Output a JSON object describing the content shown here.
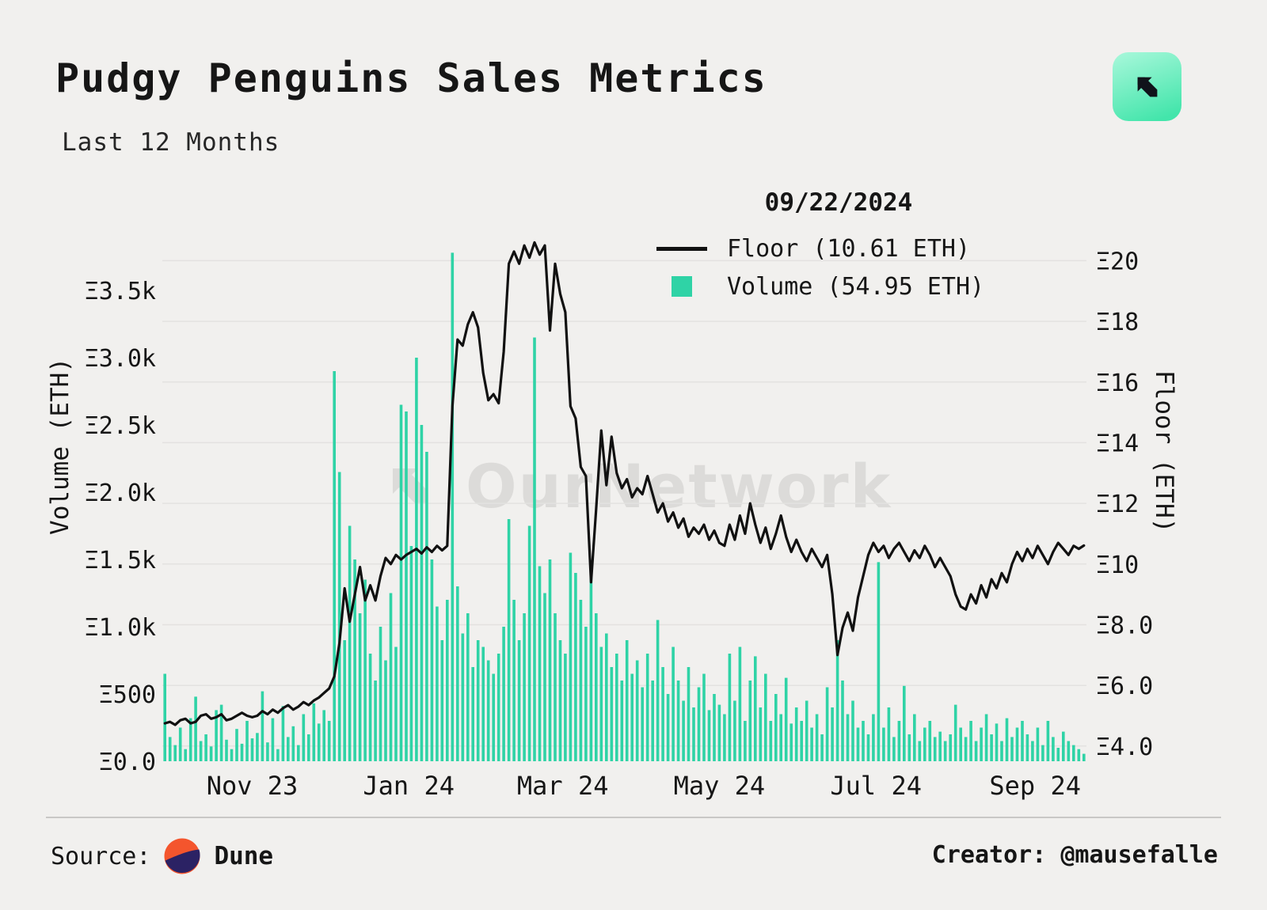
{
  "page": {
    "title": "Pudgy Penguins Sales Metrics",
    "subtitle": "Last 12 Months",
    "watermark": "OurNetwork"
  },
  "footer": {
    "source_label": "Source:",
    "source_name": "Dune",
    "creator": "Creator: @mausefalle"
  },
  "colors": {
    "background": "#f1f0ee",
    "bar": "#2fd3a6",
    "line": "#111111",
    "grid": "#e3e2e0",
    "text": "#161616",
    "watermark": "#dcdbd9",
    "logo_green_light": "#a9f8db",
    "logo_green_dark": "#43e5ab",
    "dune_orange": "#f4552d",
    "dune_navy": "#2b2264"
  },
  "chart_data": {
    "type": "bar",
    "subtype": "dual-axis bar + line, daily time series",
    "title": "Pudgy Penguins Sales Metrics",
    "legend": {
      "date": "09/22/2024",
      "floor": "Floor (10.61 ETH)",
      "volume": "Volume (54.95 ETH)"
    },
    "x_ticks": [
      {
        "label": "Nov 23",
        "pos": 17.5
      },
      {
        "label": "Jan 24",
        "pos": 48
      },
      {
        "label": "Mar 24",
        "pos": 78
      },
      {
        "label": "May 24",
        "pos": 108.5
      },
      {
        "label": "Jul 24",
        "pos": 139
      },
      {
        "label": "Sep 24",
        "pos": 170
      }
    ],
    "volume_axis": {
      "title": "Volume (ETH)",
      "min": 0,
      "max": 3800,
      "ticks": [
        {
          "value": 0,
          "label": "Ξ0.0"
        },
        {
          "value": 500,
          "label": "Ξ500"
        },
        {
          "value": 1000,
          "label": "Ξ1.0k"
        },
        {
          "value": 1500,
          "label": "Ξ1.5k"
        },
        {
          "value": 2000,
          "label": "Ξ2.0k"
        },
        {
          "value": 2500,
          "label": "Ξ2.5k"
        },
        {
          "value": 3000,
          "label": "Ξ3.0k"
        },
        {
          "value": 3500,
          "label": "Ξ3.5k"
        }
      ]
    },
    "floor_axis": {
      "title": "Floor (ETH)",
      "min": 3.5,
      "max": 20.35,
      "ticks": [
        {
          "value": 4,
          "label": "Ξ4.0"
        },
        {
          "value": 6,
          "label": "Ξ6.0"
        },
        {
          "value": 8,
          "label": "Ξ8.0"
        },
        {
          "value": 10,
          "label": "Ξ10"
        },
        {
          "value": 12,
          "label": "Ξ12"
        },
        {
          "value": 14,
          "label": "Ξ14"
        },
        {
          "value": 16,
          "label": "Ξ16"
        },
        {
          "value": 18,
          "label": "Ξ18"
        },
        {
          "value": 20,
          "label": "Ξ20"
        }
      ]
    },
    "series": [
      {
        "name": "Volume (ETH)",
        "type": "bar",
        "axis": "left",
        "latest_value": 54.95,
        "values": [
          650,
          180,
          120,
          250,
          90,
          320,
          480,
          150,
          200,
          110,
          380,
          420,
          160,
          90,
          240,
          130,
          300,
          170,
          210,
          520,
          140,
          320,
          90,
          410,
          180,
          260,
          120,
          350,
          200,
          430,
          280,
          380,
          300,
          2900,
          2150,
          900,
          1750,
          1500,
          1100,
          1350,
          800,
          600,
          1000,
          750,
          1250,
          850,
          2650,
          2600,
          1600,
          3000,
          2500,
          2300,
          1500,
          1150,
          900,
          1200,
          3780,
          1300,
          950,
          1100,
          700,
          900,
          850,
          750,
          650,
          800,
          1000,
          1800,
          1200,
          900,
          1100,
          1750,
          3150,
          1450,
          1250,
          1500,
          1100,
          900,
          800,
          1550,
          1400,
          1200,
          1000,
          1450,
          1100,
          850,
          950,
          700,
          800,
          600,
          900,
          650,
          750,
          550,
          800,
          600,
          1050,
          700,
          500,
          850,
          600,
          450,
          700,
          400,
          550,
          650,
          380,
          500,
          420,
          350,
          800,
          450,
          850,
          300,
          600,
          780,
          400,
          650,
          300,
          500,
          350,
          620,
          280,
          400,
          300,
          450,
          250,
          350,
          200,
          550,
          400,
          900,
          600,
          350,
          450,
          250,
          300,
          200,
          350,
          1480,
          250,
          400,
          180,
          300,
          560,
          200,
          350,
          150,
          250,
          300,
          180,
          220,
          150,
          200,
          420,
          250,
          180,
          300,
          150,
          250,
          350,
          200,
          280,
          150,
          320,
          180,
          250,
          300,
          200,
          150,
          250,
          120,
          300,
          180,
          100,
          220,
          150,
          120,
          90,
          55
        ]
      },
      {
        "name": "Floor (ETH)",
        "type": "line",
        "axis": "right",
        "latest_value": 10.61,
        "values": [
          4.75,
          4.8,
          4.7,
          4.85,
          4.9,
          4.75,
          4.8,
          5.0,
          5.05,
          4.9,
          4.95,
          5.05,
          4.85,
          4.9,
          5.0,
          5.1,
          5.0,
          4.95,
          5.0,
          5.15,
          5.05,
          5.2,
          5.1,
          5.25,
          5.35,
          5.2,
          5.3,
          5.45,
          5.35,
          5.5,
          5.6,
          5.75,
          5.9,
          6.3,
          7.4,
          9.2,
          8.1,
          9.0,
          9.9,
          8.8,
          9.3,
          8.8,
          9.6,
          10.2,
          10.0,
          10.3,
          10.15,
          10.3,
          10.4,
          10.5,
          10.35,
          10.55,
          10.4,
          10.6,
          10.45,
          10.6,
          15.2,
          17.4,
          17.2,
          17.9,
          18.3,
          17.8,
          16.3,
          15.4,
          15.6,
          15.3,
          17.0,
          19.9,
          20.3,
          19.9,
          20.5,
          20.1,
          20.6,
          20.2,
          20.5,
          17.7,
          19.9,
          18.9,
          18.3,
          15.2,
          14.8,
          13.2,
          12.9,
          9.4,
          11.8,
          14.4,
          12.6,
          14.2,
          13.0,
          12.5,
          12.8,
          12.2,
          12.5,
          12.3,
          12.9,
          12.3,
          11.7,
          12.0,
          11.4,
          11.7,
          11.2,
          11.5,
          10.9,
          11.2,
          11.0,
          11.3,
          10.8,
          11.1,
          10.7,
          10.6,
          11.3,
          10.8,
          11.6,
          11.0,
          12.0,
          11.3,
          10.7,
          11.2,
          10.5,
          11.0,
          11.6,
          10.9,
          10.4,
          10.8,
          10.4,
          10.1,
          10.5,
          10.2,
          9.9,
          10.3,
          9.0,
          7.0,
          7.9,
          8.4,
          7.8,
          8.9,
          9.6,
          10.3,
          10.7,
          10.4,
          10.6,
          10.2,
          10.5,
          10.7,
          10.4,
          10.1,
          10.45,
          10.2,
          10.6,
          10.3,
          9.9,
          10.2,
          9.9,
          9.6,
          9.0,
          8.6,
          8.5,
          9.0,
          8.7,
          9.3,
          8.9,
          9.5,
          9.2,
          9.7,
          9.4,
          10.0,
          10.4,
          10.1,
          10.5,
          10.2,
          10.6,
          10.3,
          10.0,
          10.4,
          10.7,
          10.5,
          10.3,
          10.6,
          10.5,
          10.61
        ]
      }
    ]
  }
}
